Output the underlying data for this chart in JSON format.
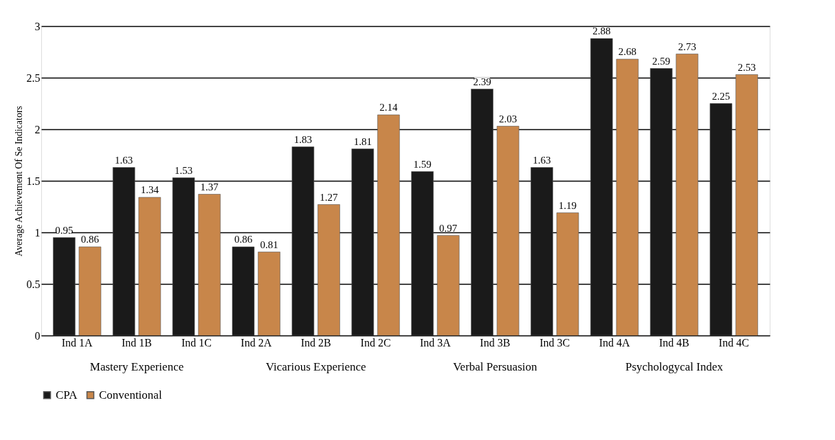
{
  "chart_data": {
    "type": "bar",
    "ylabel": "Average Achievement Of Se Indicators",
    "categories": [
      "Ind 1A",
      "Ind 1B",
      "Ind 1C",
      "Ind 2A",
      "Ind 2B",
      "Ind 2C",
      "Ind 3A",
      "Ind 3B",
      "Ind 3C",
      "Ind 4A",
      "Ind 4B",
      "Ind 4C"
    ],
    "series": [
      {
        "name": "CPA",
        "color": "#1a1a1a",
        "values": [
          0.95,
          1.63,
          1.53,
          0.86,
          1.83,
          1.81,
          1.59,
          2.39,
          1.63,
          2.88,
          2.59,
          2.25
        ]
      },
      {
        "name": "Conventional",
        "color": "#c8864a",
        "values": [
          0.86,
          1.34,
          1.37,
          0.81,
          1.27,
          2.14,
          0.97,
          2.03,
          1.19,
          2.68,
          2.73,
          2.53
        ]
      }
    ],
    "annotations": [
      "Mastery Experience",
      "Vicarious Experience",
      "Verbal Persuasion",
      "Psychologycal Index"
    ],
    "ylim": [
      0,
      3
    ],
    "yticks": [
      0,
      0.5,
      1,
      1.5,
      2,
      2.5,
      3
    ],
    "grid": "y",
    "legend": "bottom",
    "data_labels": true
  }
}
